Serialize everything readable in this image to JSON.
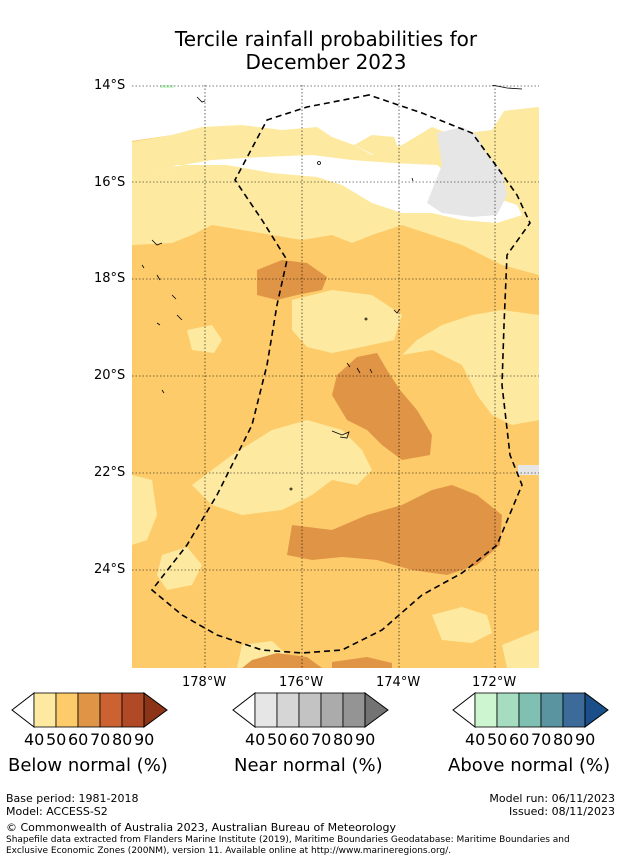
{
  "title": {
    "line1": "Tercile rainfall probabilities for",
    "line2": "December 2023"
  },
  "axes": {
    "lat_labels": [
      "14°S",
      "16°S",
      "18°S",
      "20°S",
      "22°S",
      "24°S"
    ],
    "lon_labels": [
      "178°W",
      "176°W",
      "174°W",
      "172°W"
    ]
  },
  "colors": {
    "below": [
      "#fdeaa0",
      "#fdcb6a",
      "#e09546",
      "#cc6232",
      "#b04a26",
      "#8c3418"
    ],
    "near": [
      "#e6e6e6",
      "#d6d6d6",
      "#c3c3c3",
      "#ababab",
      "#949494",
      "#737373"
    ],
    "above": [
      "#cdf5d0",
      "#a6dcc0",
      "#80c0b2",
      "#5a94a1",
      "#3c6b9a",
      "#1a4f8a"
    ],
    "eez_line": "#000000"
  },
  "legend": {
    "ticks": [
      "40",
      "50",
      "60",
      "70",
      "80",
      "90"
    ],
    "below_label": "Below normal (%)",
    "near_label": "Near normal (%)",
    "above_label": "Above normal (%)"
  },
  "footer": {
    "base_period": "Base period: 1981-2018",
    "model": "Model: ACCESS-S2",
    "model_run": "Model run: 06/11/2023",
    "issued": "Issued: 08/11/2023",
    "copyright": "© Commonwealth of Australia 2023, Australian Bureau of Meteorology",
    "shapefile_1": "Shapefile data extracted from Flanders Marine Institute (2019), Maritime Boundaries Geodatabase: Maritime Boundaries and",
    "shapefile_2": "Exclusive Economic Zones (200NM), version 11. Available online at http://www.marineregions.org/."
  }
}
